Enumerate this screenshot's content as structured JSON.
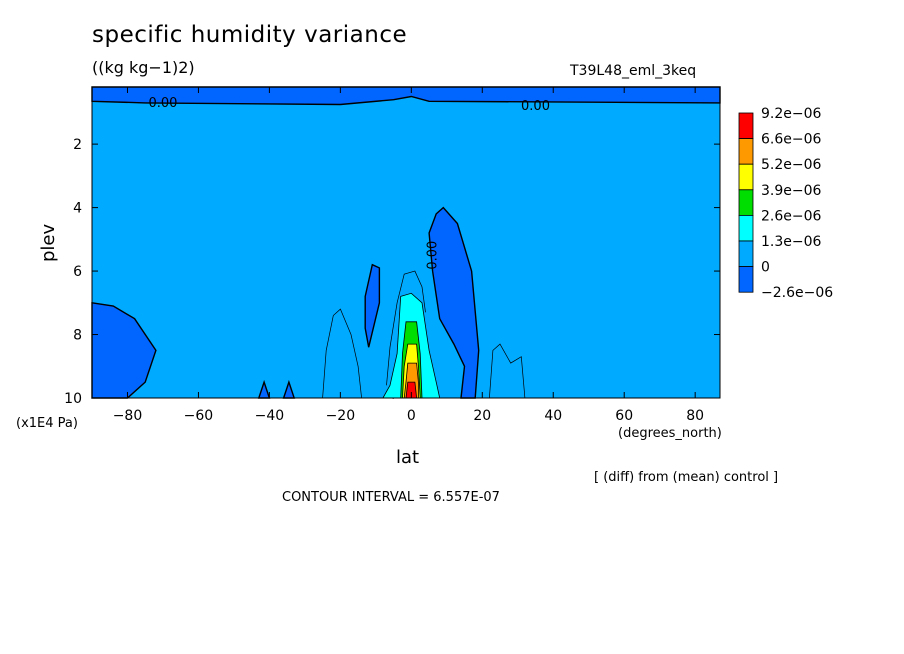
{
  "title": "specific humidity variance",
  "units": "((kg kg−1)2)",
  "run_label": "T39L48_eml_3keq",
  "ylabel": "plev",
  "yunit": "(x1E4 Pa)",
  "xlabel": "lat",
  "xunit": "(degrees_north)",
  "diff_note": "[ (diff) from (mean) control ]",
  "contour_interval": "CONTOUR INTERVAL = 6.557E-07",
  "chart_data": {
    "type": "contour",
    "x_range": [
      -90,
      87
    ],
    "y_range": [
      0.2,
      10
    ],
    "y_inverted": true,
    "x_ticks": [
      -80,
      -60,
      -40,
      -20,
      0,
      20,
      40,
      60,
      80
    ],
    "x_tick_labels": [
      "−80",
      "−60",
      "−40",
      "−20",
      "0",
      "20",
      "40",
      "60",
      "80"
    ],
    "y_ticks": [
      2,
      4,
      6,
      8,
      10
    ],
    "y_tick_labels": [
      "2",
      "4",
      "6",
      "8",
      "10"
    ],
    "contour_labels": [
      {
        "text": "0.00",
        "lat": -70,
        "plev": 0.7
      },
      {
        "text": "0.00",
        "lat": 35,
        "plev": 0.8
      },
      {
        "text": "0.00",
        "lat": 6,
        "plev": 5.5
      }
    ],
    "colorbar": {
      "labels": [
        "9.2e−06",
        "6.6e−06",
        "5.2e−06",
        "3.9e−06",
        "2.6e−06",
        "1.3e−06",
        "0",
        "−2.6e−06"
      ],
      "colors": [
        "#ff0000",
        "#ff9900",
        "#ffff00",
        "#00dd00",
        "#00ffff",
        "#00aaff",
        "#0066ff"
      ]
    },
    "regions": [
      {
        "name": "top-negative-band",
        "color": "#0066ff",
        "value": "−2.6e−06 to 0",
        "points": [
          [
            -90,
            0.2
          ],
          [
            87,
            0.2
          ],
          [
            87,
            0.7
          ],
          [
            5,
            0.65
          ],
          [
            0,
            0.5
          ],
          [
            -5,
            0.6
          ],
          [
            -20,
            0.75
          ],
          [
            -75,
            0.7
          ],
          [
            -90,
            0.65
          ]
        ]
      },
      {
        "name": "west-negative-patch",
        "color": "#0066ff",
        "value": "−2.6e−06 to 0",
        "points": [
          [
            -90,
            7.0
          ],
          [
            -84,
            7.1
          ],
          [
            -78,
            7.5
          ],
          [
            -72,
            8.5
          ],
          [
            -75,
            9.5
          ],
          [
            -80,
            10
          ],
          [
            -90,
            10
          ]
        ]
      },
      {
        "name": "eq-negative-lobe",
        "color": "#0066ff",
        "value": "−2.6e−06 to 0",
        "points": [
          [
            7,
            4.2
          ],
          [
            9,
            4.0
          ],
          [
            13,
            4.5
          ],
          [
            17,
            6.0
          ],
          [
            19,
            8.5
          ],
          [
            18,
            10
          ],
          [
            14,
            10
          ],
          [
            15,
            9.0
          ],
          [
            12,
            8.3
          ],
          [
            8,
            7.5
          ],
          [
            6,
            6.0
          ],
          [
            5,
            4.8
          ]
        ]
      },
      {
        "name": "small-neg-1",
        "color": "#0066ff",
        "value": "−2.6e−06 to 0",
        "points": [
          [
            -11,
            5.8
          ],
          [
            -9,
            5.9
          ],
          [
            -9,
            7.0
          ],
          [
            -12,
            8.4
          ],
          [
            -13,
            7.8
          ],
          [
            -13,
            6.8
          ]
        ]
      },
      {
        "name": "small-neg-2",
        "color": "#0066ff",
        "value": "−2.6e−06 to 0",
        "points": [
          [
            -43,
            10
          ],
          [
            -41.5,
            9.5
          ],
          [
            -40,
            10
          ]
        ]
      },
      {
        "name": "small-neg-3",
        "color": "#0066ff",
        "value": "−2.6e−06 to 0",
        "points": [
          [
            -36,
            10
          ],
          [
            -34.5,
            9.5
          ],
          [
            -33,
            10
          ]
        ]
      },
      {
        "name": "small-neg-4",
        "color": "#0066ff",
        "value": "−2.6e−06 to 0",
        "points": [
          [
            -4,
            9.3
          ],
          [
            -2.5,
            9.9
          ],
          [
            -5,
            10
          ]
        ]
      },
      {
        "name": "level-1",
        "color": "#00ffff",
        "value": "1.3e−06 to 2.6e−06",
        "points": [
          [
            -3,
            6.8
          ],
          [
            0,
            6.7
          ],
          [
            3,
            7.0
          ],
          [
            5,
            8.5
          ],
          [
            7,
            9.5
          ],
          [
            8,
            10
          ],
          [
            -8,
            10
          ],
          [
            -6,
            9.6
          ],
          [
            -4,
            8.6
          ]
        ]
      },
      {
        "name": "level-2",
        "color": "#00dd00",
        "value": "2.6e−06 to 3.9e−06",
        "points": [
          [
            -1.5,
            7.6
          ],
          [
            1.5,
            7.6
          ],
          [
            2.5,
            8.6
          ],
          [
            3,
            10
          ],
          [
            -3,
            10
          ],
          [
            -2.5,
            8.6
          ]
        ]
      },
      {
        "name": "level-3",
        "color": "#ffff00",
        "value": "3.9e−06 to 5.2e−06",
        "points": [
          [
            -1,
            8.3
          ],
          [
            1.5,
            8.3
          ],
          [
            2,
            9.0
          ],
          [
            2.5,
            10
          ],
          [
            -2.5,
            10
          ],
          [
            -2,
            9.0
          ]
        ]
      },
      {
        "name": "level-4",
        "color": "#ff9900",
        "value": "5.2e−06 to 6.6e−06",
        "points": [
          [
            -1,
            8.9
          ],
          [
            1.5,
            8.9
          ],
          [
            2,
            9.5
          ],
          [
            2,
            10
          ],
          [
            -2,
            10
          ],
          [
            -1.5,
            9.5
          ]
        ]
      },
      {
        "name": "level-5",
        "color": "#ff0000",
        "value": "6.6e−06 to 9.2e−06",
        "points": [
          [
            -1,
            9.5
          ],
          [
            1,
            9.5
          ],
          [
            1.5,
            10
          ],
          [
            -1.5,
            10
          ]
        ]
      }
    ]
  }
}
